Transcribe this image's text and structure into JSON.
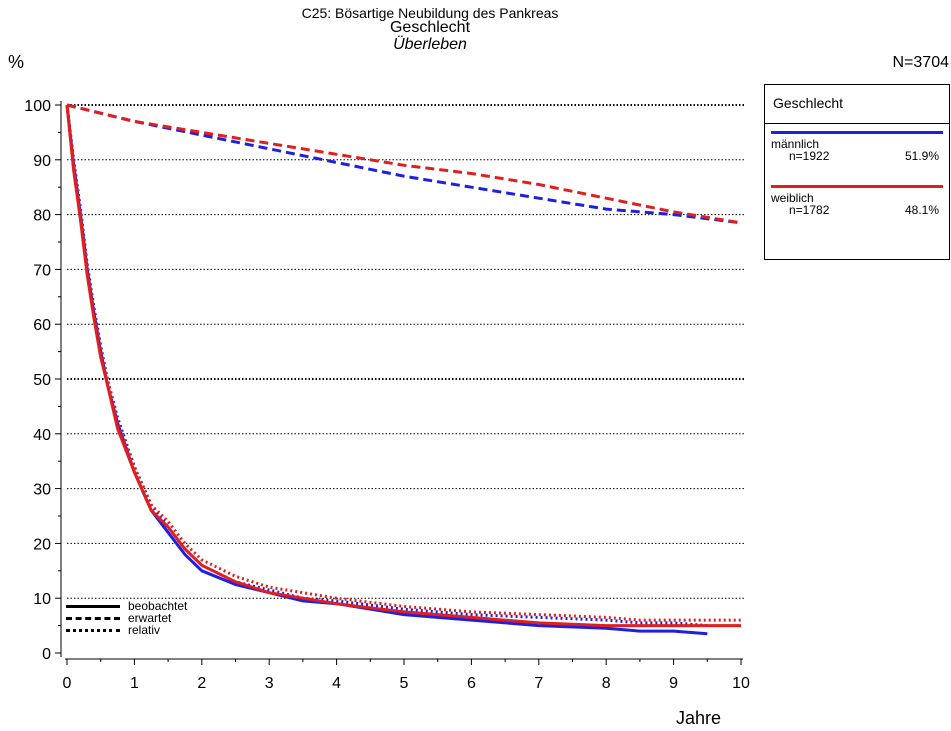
{
  "header": {
    "title": "C25: Bösartige Neubildung des Pankreas",
    "subtitle": "Geschlecht",
    "measure": "Überleben",
    "y_unit": "%",
    "n_total": "N=3704"
  },
  "legend": {
    "title": "Geschlecht",
    "entries": [
      {
        "name": "männlich",
        "n": "n=1922",
        "pct": "51.9%",
        "color": "#1f1fe0"
      },
      {
        "name": "weiblich",
        "n": "n=1782",
        "pct": "48.1%",
        "color": "#e01f1f"
      }
    ]
  },
  "linetype_legend": {
    "observed": "beobachtet",
    "expected": "erwartet",
    "relative": "relativ"
  },
  "chart_data": {
    "type": "line",
    "title": "C25: Bösartige Neubildung des Pankreas",
    "subtitle": "Geschlecht",
    "xlabel": "Jahre",
    "ylabel": "%",
    "xlim": [
      0,
      10
    ],
    "ylim": [
      0,
      100
    ],
    "x_ticks": [
      "0",
      "1",
      "2",
      "3",
      "4",
      "5",
      "6",
      "7",
      "8",
      "9",
      "10"
    ],
    "y_ticks": [
      "0",
      "10",
      "20",
      "30",
      "40",
      "50",
      "60",
      "70",
      "80",
      "90",
      "100"
    ],
    "grid": "horizontal dotted",
    "series": [
      {
        "name": "männlich",
        "kind": "beobachtet",
        "color": "#1f1fe0",
        "x": [
          0,
          0.1,
          0.2,
          0.3,
          0.4,
          0.5,
          0.6,
          0.75,
          1.0,
          1.25,
          1.5,
          1.75,
          2.0,
          2.5,
          3.0,
          3.5,
          4.0,
          5.0,
          6.0,
          7.0,
          8.0,
          8.5,
          9.0,
          9.5
        ],
        "y": [
          100,
          89,
          80,
          70,
          62,
          55,
          49,
          42,
          33,
          26,
          22,
          18,
          15,
          12.5,
          11,
          9.5,
          9,
          7,
          6,
          5,
          4.5,
          4,
          4,
          3.5
        ]
      },
      {
        "name": "männlich",
        "kind": "erwartet",
        "color": "#1f1fe0",
        "x": [
          0,
          1,
          2,
          3,
          4,
          5,
          6,
          7,
          8,
          9,
          10
        ],
        "y": [
          100,
          97,
          94.5,
          92,
          89.5,
          87,
          85,
          83,
          81,
          80,
          78.5
        ]
      },
      {
        "name": "männlich",
        "kind": "relativ",
        "color": "#1f1fe0",
        "x": [
          0,
          0.1,
          0.2,
          0.3,
          0.4,
          0.5,
          0.6,
          0.75,
          1.0,
          1.25,
          1.5,
          1.75,
          2.0,
          2.5,
          3.0,
          3.5,
          4.0,
          5.0,
          6.0,
          7.0,
          8.0,
          8.5,
          9.0,
          9.5
        ],
        "y": [
          100,
          90,
          81,
          71,
          63,
          56,
          50,
          43,
          34,
          27,
          23,
          19,
          16,
          13,
          11.5,
          10,
          9.5,
          8,
          7,
          6.5,
          6,
          5.5,
          5.5,
          5
        ]
      },
      {
        "name": "weiblich",
        "kind": "beobachtet",
        "color": "#e01f1f",
        "x": [
          0,
          0.1,
          0.2,
          0.3,
          0.4,
          0.5,
          0.6,
          0.75,
          1.0,
          1.25,
          1.5,
          1.75,
          2.0,
          2.5,
          3.0,
          3.5,
          4.0,
          5.0,
          6.0,
          7.0,
          8.0,
          8.5,
          9.0,
          9.5,
          10.0
        ],
        "y": [
          100,
          88,
          79,
          69,
          61,
          54,
          49,
          41,
          33,
          26,
          23,
          19,
          16,
          13,
          11,
          10,
          9,
          7.5,
          6.5,
          5.5,
          5,
          5,
          5,
          5,
          5
        ]
      },
      {
        "name": "weiblich",
        "kind": "erwartet",
        "color": "#e01f1f",
        "x": [
          0,
          1,
          2,
          3,
          4,
          5,
          6,
          7,
          8,
          9,
          10
        ],
        "y": [
          100,
          97,
          95,
          93,
          91,
          89,
          87.5,
          85.5,
          83,
          80.5,
          78.5
        ]
      },
      {
        "name": "weiblich",
        "kind": "relativ",
        "color": "#e01f1f",
        "x": [
          0,
          0.1,
          0.2,
          0.3,
          0.4,
          0.5,
          0.6,
          0.75,
          1.0,
          1.25,
          1.5,
          1.75,
          2.0,
          2.5,
          3.0,
          3.5,
          4.0,
          5.0,
          6.0,
          7.0,
          8.0,
          8.5,
          9.0,
          9.5,
          10.0
        ],
        "y": [
          100,
          89,
          80,
          70,
          62,
          55,
          50,
          42,
          34,
          27,
          24,
          20,
          17,
          14,
          12,
          11,
          10,
          8.5,
          7.5,
          7,
          6.5,
          6,
          6,
          6,
          6
        ]
      }
    ]
  }
}
